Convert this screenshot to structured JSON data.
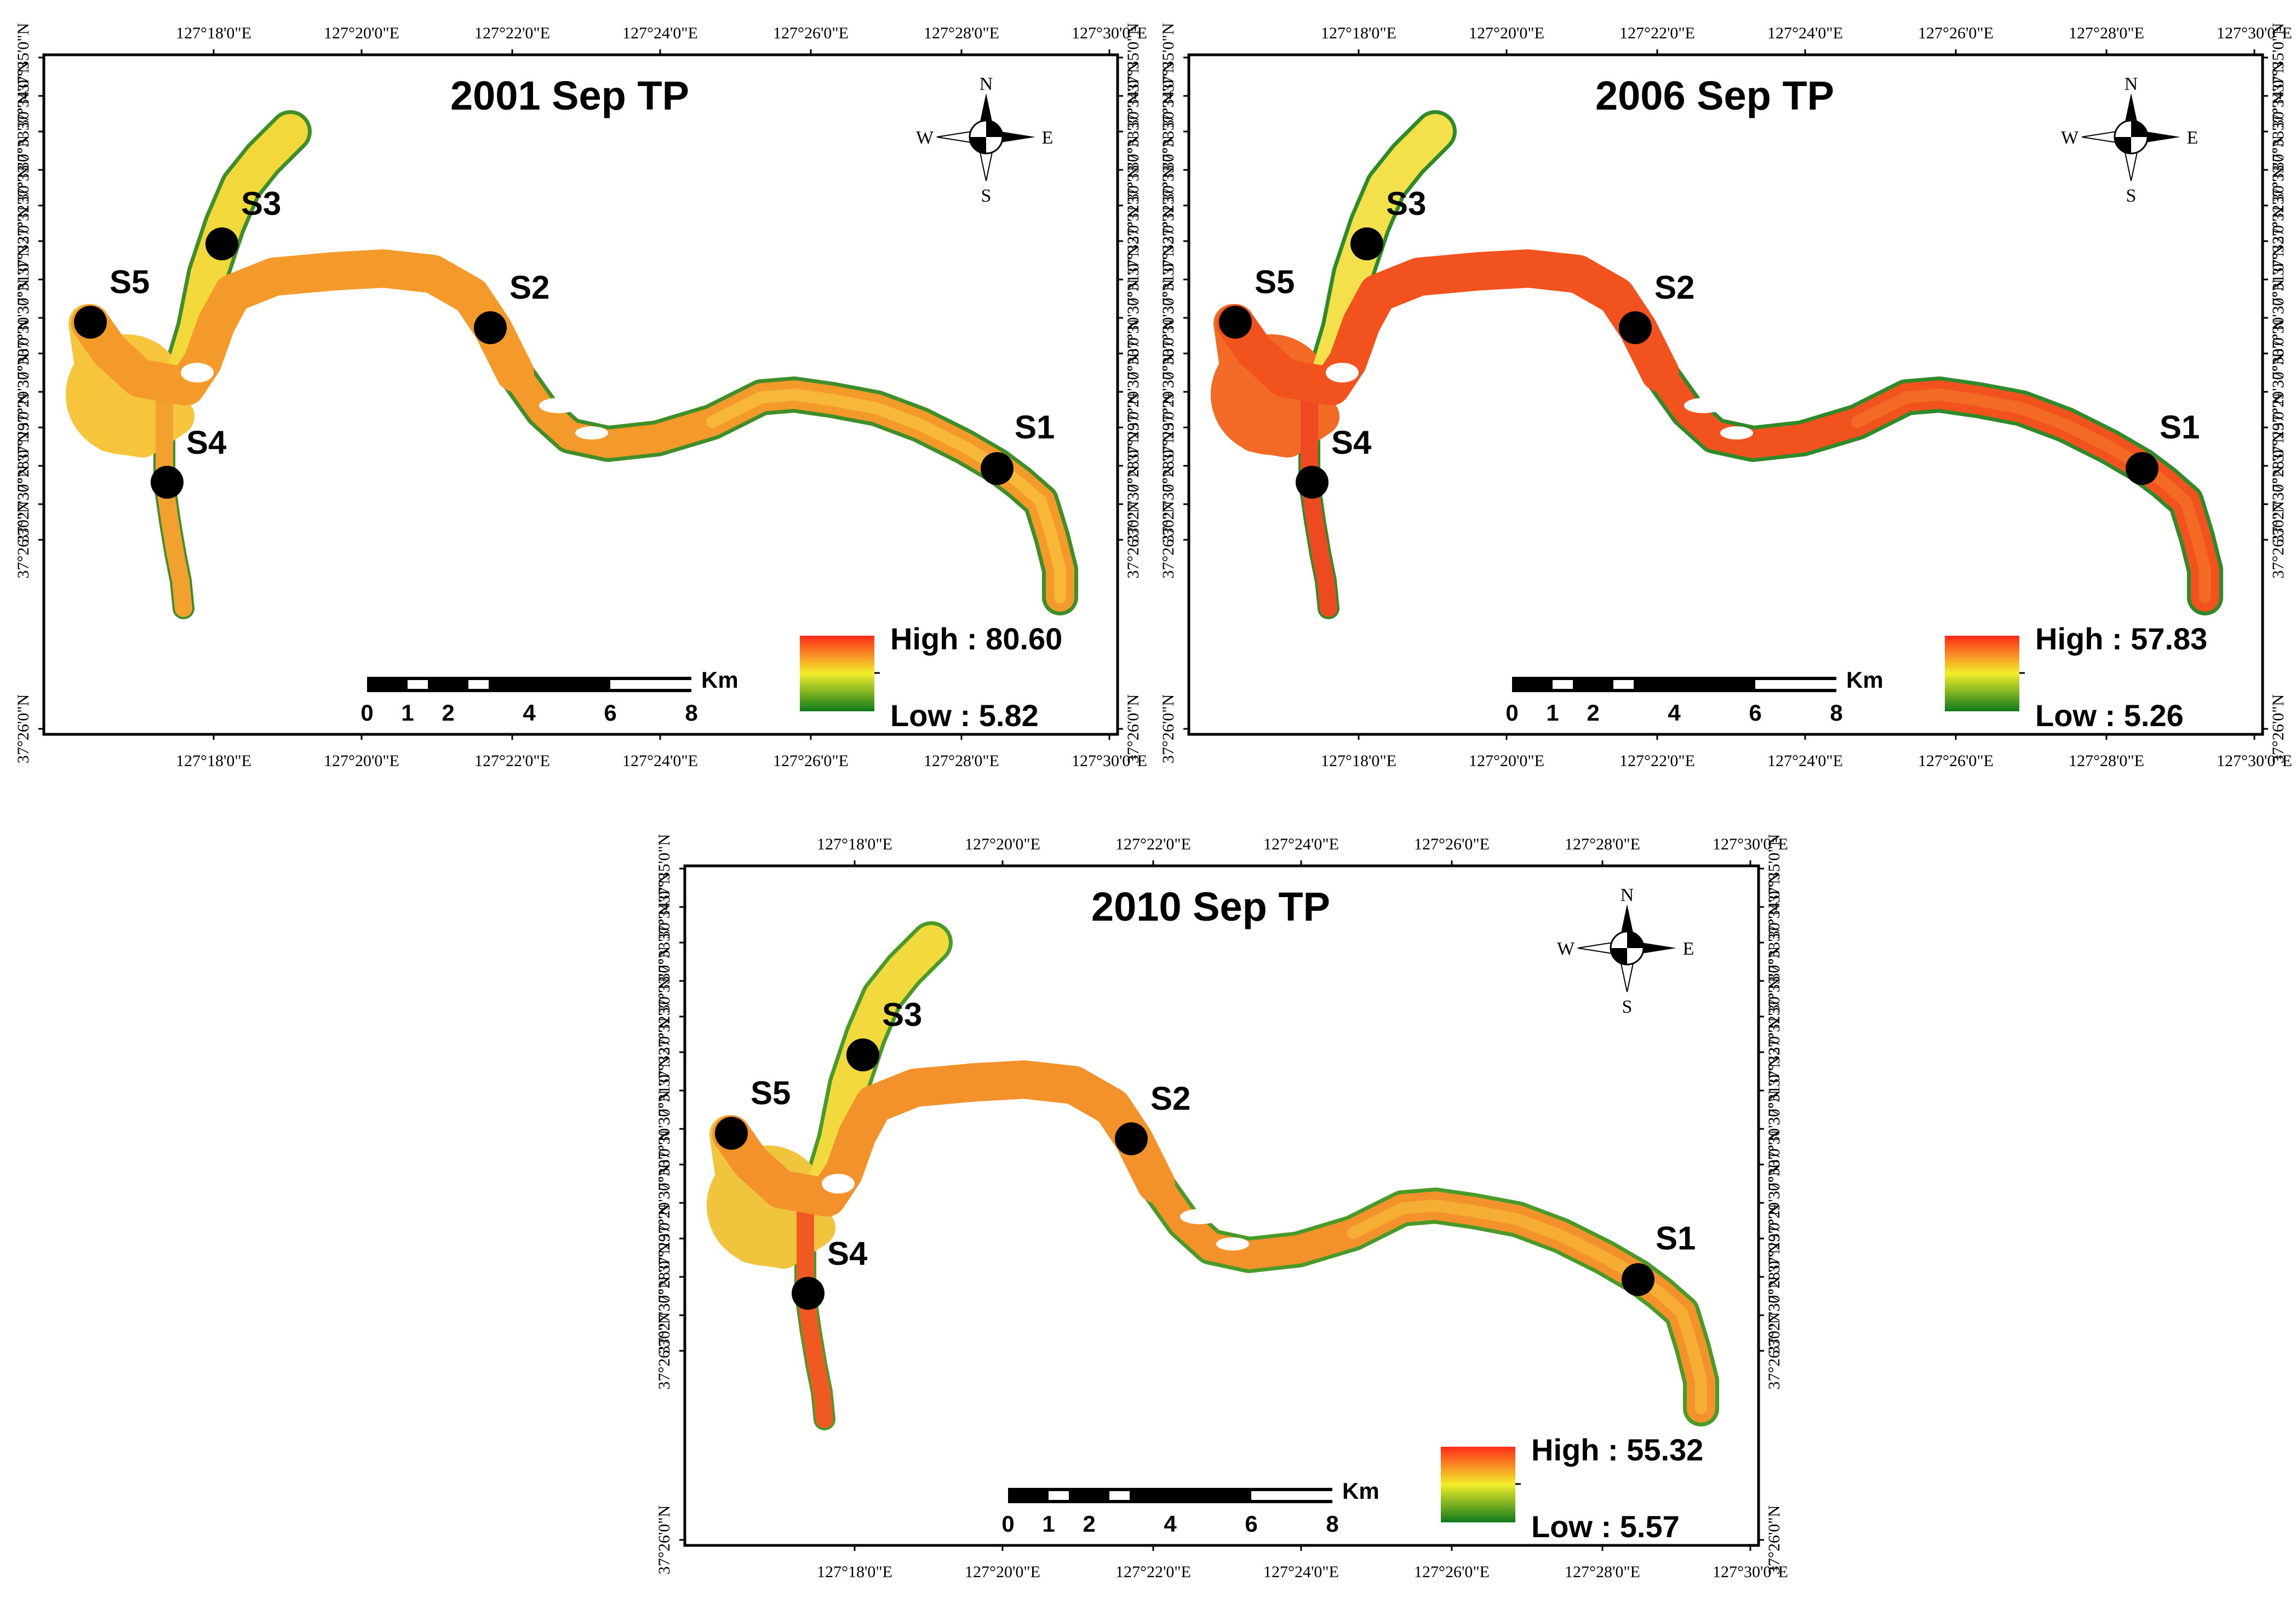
{
  "colors": {
    "high": "#ff2a1a",
    "mid": "#f2ee2a",
    "low": "#0e7a1a",
    "station": "#000000"
  },
  "lon_labels": [
    "127°18'0\"E",
    "127°20'0\"E",
    "127°22'0\"E",
    "127°24'0\"E",
    "127°26'0\"E",
    "127°28'0\"E",
    "127°30'0\"E"
  ],
  "lat_labels": [
    "37°35'0\"N",
    "37°34'0\"N",
    "37°33'30\"N",
    "37°33'0\"N",
    "37°32'30\"N",
    "37°32'0\"N",
    "37°31'0\"N",
    "37°30'30\"N",
    "37°30'0\"N",
    "37°29'30\"N",
    "37°29'0\"N",
    "37°28'0\"N",
    "37°27'30\"N",
    "37°26'30\"N",
    "37°26'0\"N"
  ],
  "compass": {
    "n": "N",
    "s": "S",
    "e": "E",
    "w": "W",
    "icon": "north-arrow-compass"
  },
  "scalebar": {
    "unit": "Km",
    "ticks": [
      "0",
      "1",
      "2",
      "4",
      "6",
      "8"
    ]
  },
  "stations": [
    "S1",
    "S2",
    "S3",
    "S4",
    "S5"
  ],
  "maps": [
    {
      "title": "2001 Sep TP",
      "legend": {
        "high": "High : 80.60",
        "low": "Low : 5.82"
      },
      "tone": "orange"
    },
    {
      "title": "2006 Sep TP",
      "legend": {
        "high": "High : 57.83",
        "low": "Low : 5.26"
      },
      "tone": "red"
    },
    {
      "title": "2010 Sep TP",
      "legend": {
        "high": "High : 55.32",
        "low": "Low : 5.57"
      },
      "tone": "mixed"
    }
  ]
}
